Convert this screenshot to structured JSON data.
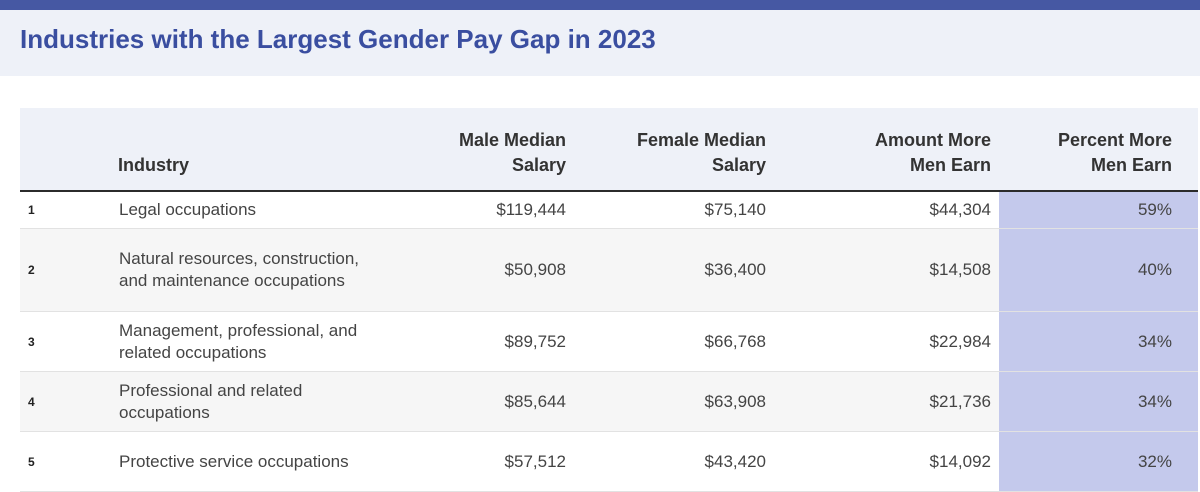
{
  "title": "Industries with the Largest Gender Pay Gap in 2023",
  "colors": {
    "accent": "#3a4ea0",
    "bar": "#4658a3",
    "highlight": "#c4c9ec",
    "header_bg": "#eef1f8"
  },
  "chart_data": {
    "type": "table",
    "title": "Industries with the Largest Gender Pay Gap in 2023",
    "columns": [
      {
        "line1": "",
        "line2": ""
      },
      {
        "line1": "",
        "line2": "Industry"
      },
      {
        "line1": "Male Median",
        "line2": "Salary"
      },
      {
        "line1": "Female Median",
        "line2": "Salary"
      },
      {
        "line1": "Amount More",
        "line2": "Men Earn"
      },
      {
        "line1": "Percent More",
        "line2": "Men Earn"
      }
    ],
    "rows": [
      {
        "rank": "1",
        "industry": "Legal occupations",
        "male": "$119,444",
        "female": "$75,140",
        "amount": "$44,304",
        "percent": "59%"
      },
      {
        "rank": "2",
        "industry": "Natural resources, construction, and maintenance occupations",
        "male": "$50,908",
        "female": "$36,400",
        "amount": "$14,508",
        "percent": "40%"
      },
      {
        "rank": "3",
        "industry": "Management, professional, and related occupations",
        "male": "$89,752",
        "female": "$66,768",
        "amount": "$22,984",
        "percent": "34%"
      },
      {
        "rank": "4",
        "industry": "Professional and related occupations",
        "male": "$85,644",
        "female": "$63,908",
        "amount": "$21,736",
        "percent": "34%"
      },
      {
        "rank": "5",
        "industry": "Protective service occupations",
        "male": "$57,512",
        "female": "$43,420",
        "amount": "$14,092",
        "percent": "32%"
      }
    ]
  }
}
